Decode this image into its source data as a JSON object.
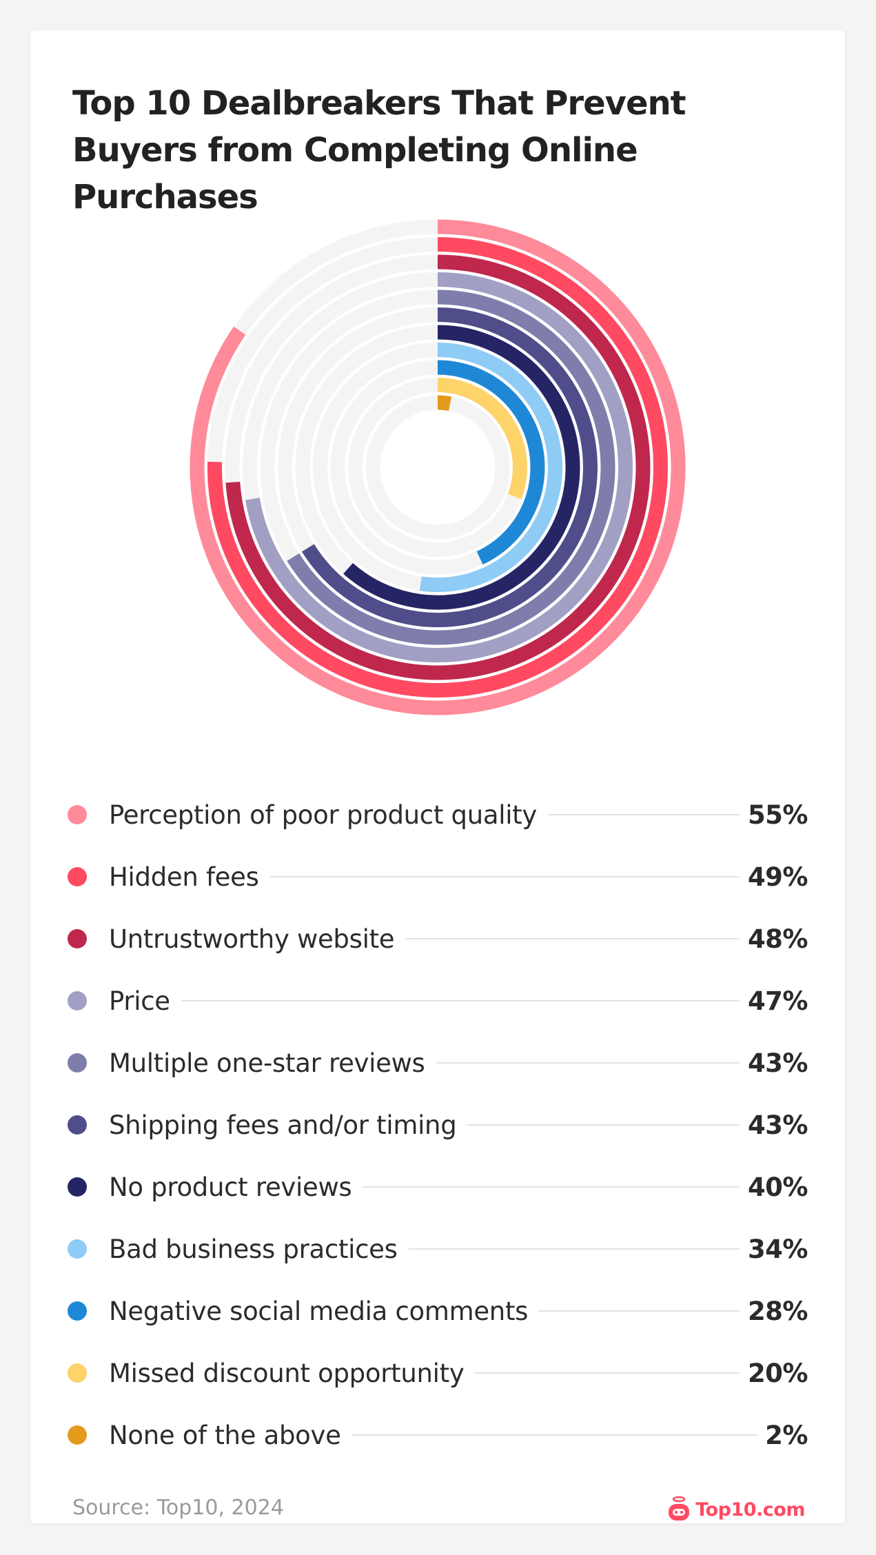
{
  "chart_data": {
    "type": "radial-bar",
    "title": "Top 10 Dealbreakers That Prevent Buyers from Completing Online Purchases",
    "max": 65,
    "series": [
      {
        "name": "Perception of poor product quality",
        "value": 55,
        "label": "55%",
        "color": "#ff8a99"
      },
      {
        "name": "Hidden fees",
        "value": 49,
        "label": "49%",
        "color": "#ff4a62"
      },
      {
        "name": "Untrustworthy website",
        "value": 48,
        "label": "48%",
        "color": "#bf274c"
      },
      {
        "name": "Price",
        "value": 47,
        "label": "47%",
        "color": "#a19fc4"
      },
      {
        "name": "Multiple one-star reviews",
        "value": 43,
        "label": "43%",
        "color": "#7e7dab"
      },
      {
        "name": "Shipping fees and/or timing",
        "value": 43,
        "label": "43%",
        "color": "#4f4d8a"
      },
      {
        "name": "No product reviews",
        "value": 40,
        "label": "40%",
        "color": "#252464"
      },
      {
        "name": "Bad business practices",
        "value": 34,
        "label": "34%",
        "color": "#8ecbf5"
      },
      {
        "name": "Negative social media comments",
        "value": 28,
        "label": "28%",
        "color": "#1e88d6"
      },
      {
        "name": "Missed discount opportunity",
        "value": 20,
        "label": "20%",
        "color": "#fdd36a"
      },
      {
        "name": "None of the above",
        "value": 2,
        "label": "2%",
        "color": "#e49a1c"
      }
    ],
    "track_color": "#f4f4f4"
  },
  "footer": {
    "source": "Source: Top10, 2024",
    "brand": "Top10.com"
  }
}
